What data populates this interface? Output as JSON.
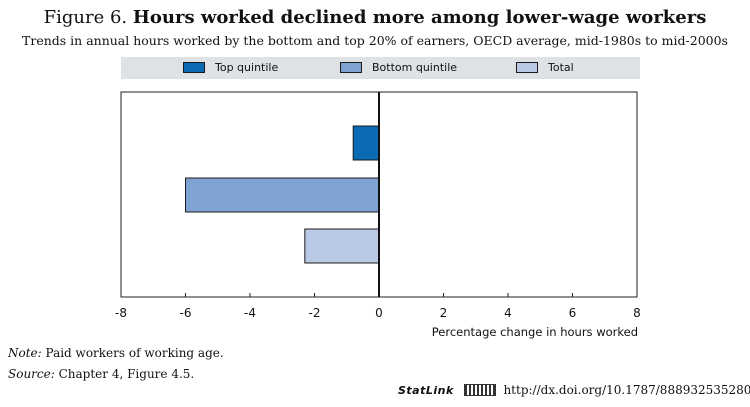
{
  "figure": {
    "number": "Figure 6.",
    "title": "Hours worked declined more among lower-wage workers",
    "subtitle": "Trends in annual hours worked by the bottom and top 20% of earners, OECD average, mid-1980s to mid-2000s"
  },
  "legend": [
    {
      "label": "Top quintile",
      "color": "#0a6ab4"
    },
    {
      "label": "Bottom quintile",
      "color": "#7ea3d3"
    },
    {
      "label": "Total",
      "color": "#b9c9e6"
    }
  ],
  "chart_data": {
    "type": "bar",
    "orientation": "horizontal",
    "categories": [
      "Top quintile",
      "Bottom quintile",
      "Total"
    ],
    "values": [
      -0.8,
      -6.0,
      -2.3
    ],
    "colors": [
      "#0a6ab4",
      "#7ea3d3",
      "#b9c9e6"
    ],
    "xlabel": "Percentage change in hours worked",
    "xlim": [
      -8,
      8
    ],
    "xticks": [
      -8,
      -6,
      -4,
      -2,
      0,
      2,
      4,
      6,
      8
    ],
    "xtick_labels": [
      "-8",
      "-6",
      "-4",
      "-2",
      "0",
      "2",
      "4",
      "6",
      "8"
    ]
  },
  "notes": {
    "note_label": "Note:",
    "note_text": "Paid workers of working age.",
    "source_label": "Source:",
    "source_text": "Chapter 4, Figure 4.5."
  },
  "statlink": {
    "brand": "StatLink",
    "url": "http://dx.doi.org/10.1787/888932535280"
  }
}
